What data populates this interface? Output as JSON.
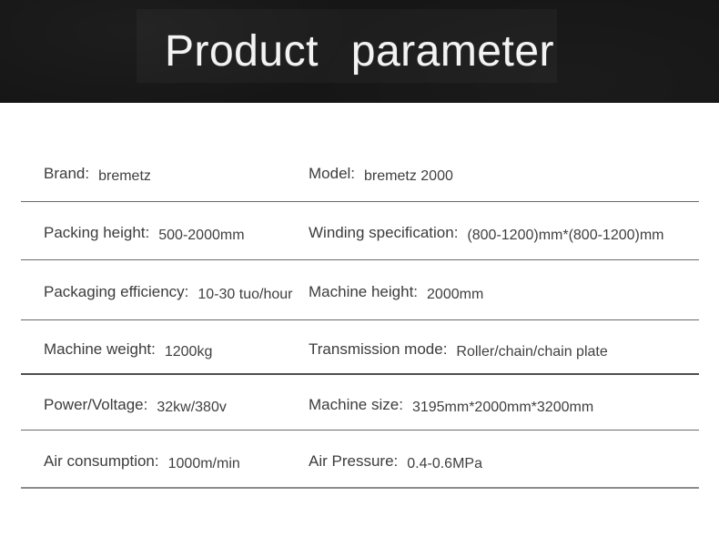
{
  "header": {
    "title": "Product  parameter"
  },
  "colors": {
    "header_bg": "#161616",
    "title_text": "#f3f3f3",
    "body_text": "#3c3c3c",
    "divider": "#6a6a6a"
  },
  "rows": [
    {
      "left": {
        "label": "Brand:",
        "value": "bremetz"
      },
      "right": {
        "label": "Model:",
        "value": "bremetz 2000"
      }
    },
    {
      "left": {
        "label": "Packing height:",
        "value": "500-2000mm"
      },
      "right": {
        "label": "Winding specification:",
        "value": "(800-1200)mm*(800-1200)mm"
      }
    },
    {
      "left": {
        "label": "Packaging efficiency:",
        "value": "10-30 tuo/hour"
      },
      "right": {
        "label": "Machine height:",
        "value": "2000mm"
      }
    },
    {
      "left": {
        "label": "Machine weight:",
        "value": "1200kg"
      },
      "right": {
        "label": "Transmission mode:",
        "value": "Roller/chain/chain plate"
      }
    },
    {
      "left": {
        "label": "Power/Voltage:",
        "value": "32kw/380v"
      },
      "right": {
        "label": "Machine size:",
        "value": "3195mm*2000mm*3200mm"
      }
    },
    {
      "left": {
        "label": "Air consumption:",
        "value": "1000m/min"
      },
      "right": {
        "label": "Air Pressure:",
        "value": "0.4-0.6MPa"
      }
    }
  ]
}
